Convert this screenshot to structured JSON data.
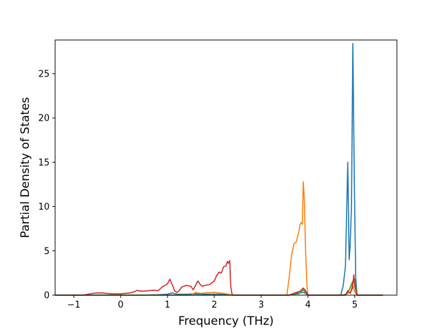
{
  "chart_data": {
    "type": "line",
    "title": "",
    "xlabel": "Frequency (THz)",
    "ylabel": "Partial Density of States",
    "xlim": [
      -1.4,
      5.9
    ],
    "ylim": [
      0,
      28.8
    ],
    "xticks": [
      -1,
      0,
      1,
      2,
      3,
      4,
      5
    ],
    "xtick_labels": [
      "−1",
      "0",
      "1",
      "2",
      "3",
      "4",
      "5"
    ],
    "yticks": [
      0,
      5,
      10,
      15,
      20,
      25
    ],
    "ytick_labels": [
      "0",
      "5",
      "10",
      "15",
      "20",
      "25"
    ],
    "grid": false,
    "legend": "none",
    "series": [
      {
        "color": "#1f77b4",
        "x": [
          -1.4,
          0.4,
          0.8,
          1.0,
          1.1,
          1.2,
          1.4,
          1.6,
          1.8,
          2.0,
          2.2,
          2.3,
          2.35,
          2.4,
          3.6,
          3.7,
          3.8,
          3.9,
          3.95,
          4.0,
          4.7,
          4.75,
          4.8,
          4.85,
          4.88,
          4.9,
          4.93,
          4.96,
          4.99,
          5.02,
          5.05,
          5.1,
          5.6
        ],
        "y": [
          0,
          0,
          0.05,
          0.1,
          0.25,
          0.1,
          0.1,
          0.15,
          0.1,
          0.12,
          0.1,
          0.05,
          0.02,
          0,
          0,
          0.2,
          0.25,
          0.3,
          0.2,
          0,
          0,
          1,
          3.2,
          15,
          4,
          5.5,
          10,
          28.4,
          13,
          2,
          0,
          0,
          0
        ]
      },
      {
        "color": "#ff7f0e",
        "x": [
          -1.4,
          1.5,
          1.6,
          1.7,
          1.8,
          2.0,
          2.2,
          2.3,
          2.4,
          3.55,
          3.6,
          3.65,
          3.7,
          3.75,
          3.8,
          3.83,
          3.86,
          3.88,
          3.9,
          3.92,
          3.95,
          3.98,
          4.0,
          4.8,
          4.85,
          4.9,
          4.95,
          5.0,
          5.05,
          5.6
        ],
        "y": [
          0,
          0,
          0.3,
          0.2,
          0.25,
          0.3,
          0.2,
          0.1,
          0,
          0,
          2,
          4.5,
          5.8,
          6,
          7,
          8,
          8.2,
          8,
          12.8,
          11,
          5,
          1,
          0,
          0,
          0.5,
          0.2,
          1.2,
          0.4,
          0,
          0
        ]
      },
      {
        "color": "#2ca02c",
        "x": [
          -1.4,
          3.6,
          3.7,
          3.8,
          3.9,
          4.0,
          4.75,
          4.85,
          4.95,
          5.0,
          5.05,
          5.6
        ],
        "y": [
          0,
          0,
          0.1,
          0.15,
          0.6,
          0,
          0,
          0.2,
          1.5,
          1.8,
          0,
          0
        ]
      },
      {
        "color": "#d62728",
        "x": [
          -1.4,
          -0.8,
          -0.7,
          -0.6,
          -0.5,
          -0.4,
          -0.3,
          -0.2,
          -0.1,
          0.0,
          0.1,
          0.2,
          0.3,
          0.35,
          0.4,
          0.5,
          0.6,
          0.7,
          0.8,
          0.9,
          0.95,
          1.0,
          1.05,
          1.1,
          1.15,
          1.2,
          1.25,
          1.3,
          1.4,
          1.5,
          1.55,
          1.6,
          1.65,
          1.7,
          1.75,
          1.8,
          1.9,
          2.0,
          2.05,
          2.1,
          2.15,
          2.2,
          2.25,
          2.28,
          2.3,
          2.33,
          2.35,
          2.38,
          2.4,
          3.6,
          3.7,
          3.8,
          3.85,
          3.9,
          3.95,
          4.0,
          4.8,
          4.85,
          4.9,
          4.95,
          4.98,
          5.0,
          5.05,
          5.6
        ],
        "y": [
          0,
          0,
          0.1,
          0.2,
          0.25,
          0.25,
          0.2,
          0.15,
          0.15,
          0.15,
          0.2,
          0.25,
          0.4,
          0.55,
          0.45,
          0.45,
          0.5,
          0.55,
          0.5,
          1.0,
          1.1,
          1.3,
          1.8,
          1.2,
          0.5,
          0.3,
          0.5,
          0.9,
          1.1,
          1.0,
          0.6,
          1.1,
          1.6,
          1.2,
          1.0,
          1.1,
          1.2,
          1.6,
          2.2,
          2.6,
          2.5,
          3.2,
          3.3,
          3.8,
          3.6,
          3.9,
          1.0,
          0.1,
          0,
          0,
          0.2,
          0.4,
          0.5,
          0.8,
          0.5,
          0,
          0,
          0.5,
          0.2,
          0.8,
          2.3,
          1.0,
          0,
          0
        ]
      }
    ]
  }
}
